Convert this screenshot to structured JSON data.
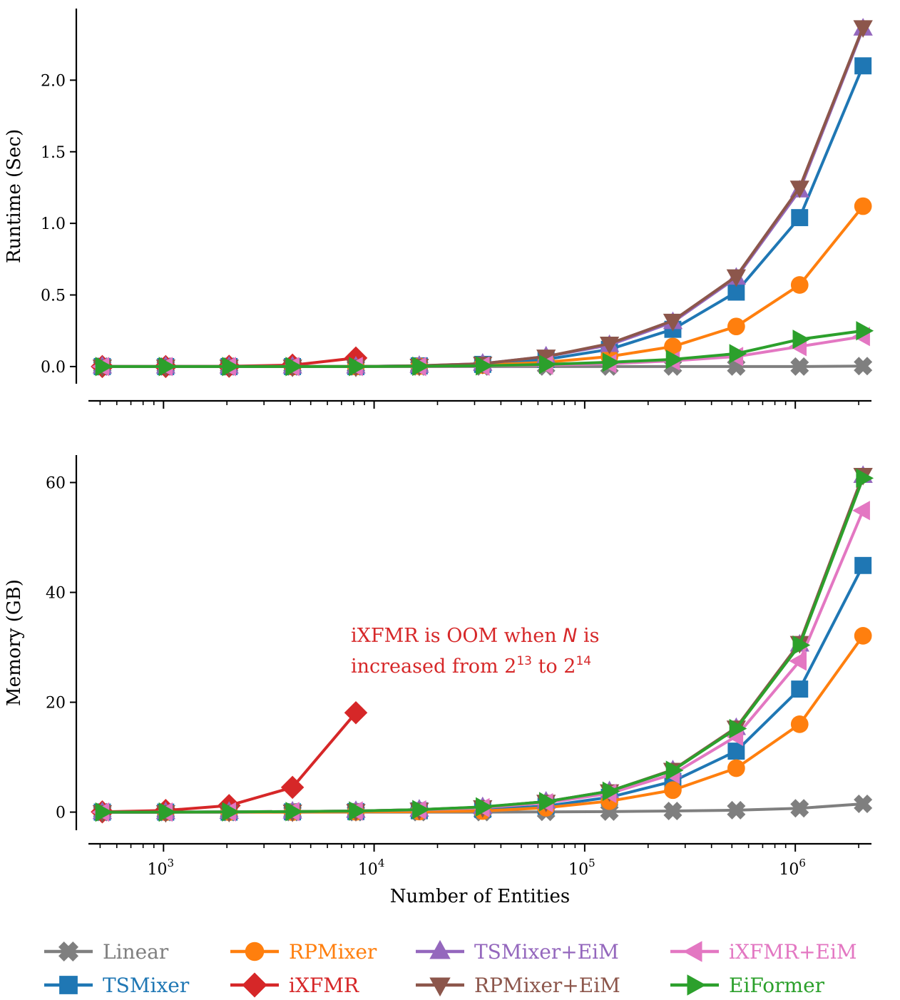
{
  "chart_data": [
    {
      "type": "line",
      "panel": "top",
      "ylabel": "Runtime (Sec)",
      "xlabel": "",
      "xscale": "log",
      "xlim": [
        440,
        2300000
      ],
      "ylim": [
        -0.12,
        2.5
      ],
      "yticks": [
        0.0,
        0.5,
        1.0,
        1.5,
        2.0
      ],
      "ytick_labels": [
        "0.0",
        "0.5",
        "1.0",
        "1.5",
        "2.0"
      ],
      "x": [
        512,
        1024,
        2048,
        4096,
        8192,
        16384,
        32768,
        65536,
        131072,
        262144,
        524288,
        1048576,
        2097152
      ],
      "series": [
        {
          "name": "Linear",
          "color": "#7f7f7f",
          "marker": "x",
          "values": [
            0.0,
            0.0,
            0.0,
            0.0,
            0.0,
            0.0,
            0.0,
            0.0,
            0.0,
            0.0,
            0.0,
            0.0,
            0.003
          ]
        },
        {
          "name": "TSMixer",
          "color": "#1f77b4",
          "marker": "s",
          "values": [
            0.0,
            0.0,
            0.0,
            0.0,
            0.0,
            0.005,
            0.015,
            0.05,
            0.12,
            0.26,
            0.52,
            1.04,
            2.1
          ]
        },
        {
          "name": "RPMixer",
          "color": "#ff7f0e",
          "marker": "o",
          "values": [
            0.0,
            0.0,
            0.0,
            0.0,
            0.0,
            0.003,
            0.01,
            0.03,
            0.07,
            0.14,
            0.28,
            0.57,
            1.12
          ]
        },
        {
          "name": "iXFMR",
          "color": "#d62728",
          "marker": "D",
          "values": [
            0.0,
            0.0,
            0.002,
            0.01,
            0.06,
            null,
            null,
            null,
            null,
            null,
            null,
            null,
            null
          ]
        },
        {
          "name": "TSMixer+EiM",
          "color": "#9467bd",
          "marker": "^",
          "values": [
            0.0,
            0.0,
            0.0,
            0.0,
            0.0,
            0.005,
            0.02,
            0.07,
            0.15,
            0.31,
            0.62,
            1.23,
            2.36
          ]
        },
        {
          "name": "RPMixer+EiM",
          "color": "#8c564b",
          "marker": "v",
          "values": [
            0.0,
            0.0,
            0.0,
            0.0,
            0.0,
            0.006,
            0.02,
            0.07,
            0.16,
            0.32,
            0.63,
            1.25,
            2.37
          ]
        },
        {
          "name": "iXFMR+EiM",
          "color": "#e377c2",
          "marker": "<",
          "values": [
            0.0,
            0.0,
            0.0,
            0.0,
            0.0,
            0.0,
            0.003,
            0.01,
            0.02,
            0.04,
            0.07,
            0.14,
            0.21
          ]
        },
        {
          "name": "EiFormer",
          "color": "#2ca02c",
          "marker": ">",
          "values": [
            0.0,
            0.0,
            0.0,
            0.0,
            0.0,
            0.002,
            0.005,
            0.015,
            0.03,
            0.05,
            0.09,
            0.19,
            0.25
          ]
        }
      ]
    },
    {
      "type": "line",
      "panel": "bottom",
      "ylabel": "Memory (GB)",
      "xlabel": "Number of Entities",
      "xscale": "log",
      "xlim": [
        440,
        2300000
      ],
      "ylim": [
        -3.3,
        65
      ],
      "yticks": [
        0,
        20,
        40,
        60
      ],
      "ytick_labels": [
        "0",
        "20",
        "40",
        "60"
      ],
      "x": [
        512,
        1024,
        2048,
        4096,
        8192,
        16384,
        32768,
        65536,
        131072,
        262144,
        524288,
        1048576,
        2097152
      ],
      "series": [
        {
          "name": "Linear",
          "color": "#7f7f7f",
          "marker": "x",
          "values": [
            0.0,
            0.0,
            0.0,
            0.0,
            0.0,
            0.0,
            0.0,
            0.05,
            0.1,
            0.2,
            0.35,
            0.7,
            1.5
          ]
        },
        {
          "name": "TSMixer",
          "color": "#1f77b4",
          "marker": "s",
          "values": [
            0.0,
            0.0,
            0.0,
            0.05,
            0.1,
            0.25,
            0.5,
            1.1,
            2.7,
            5.6,
            11.1,
            22.4,
            44.9
          ]
        },
        {
          "name": "RPMixer",
          "color": "#ff7f0e",
          "marker": "o",
          "values": [
            0.0,
            0.0,
            0.0,
            0.0,
            0.05,
            0.1,
            0.2,
            0.8,
            2.0,
            4.0,
            8.0,
            16.0,
            32.1
          ]
        },
        {
          "name": "iXFMR",
          "color": "#d62728",
          "marker": "D",
          "values": [
            0.05,
            0.3,
            1.2,
            4.5,
            18.1,
            null,
            null,
            null,
            null,
            null,
            null,
            null,
            null
          ]
        },
        {
          "name": "TSMixer+EiM",
          "color": "#9467bd",
          "marker": "^",
          "values": [
            0.0,
            0.0,
            0.05,
            0.1,
            0.2,
            0.45,
            0.9,
            1.9,
            3.8,
            7.6,
            15.3,
            30.5,
            61.2
          ]
        },
        {
          "name": "RPMixer+EiM",
          "color": "#8c564b",
          "marker": "v",
          "values": [
            0.0,
            0.0,
            0.05,
            0.1,
            0.2,
            0.45,
            0.9,
            1.9,
            3.8,
            7.7,
            15.4,
            30.8,
            61.4
          ]
        },
        {
          "name": "iXFMR+EiM",
          "color": "#e377c2",
          "marker": "<",
          "values": [
            0.0,
            0.0,
            0.05,
            0.1,
            0.2,
            0.4,
            0.8,
            1.7,
            3.4,
            6.9,
            13.8,
            27.5,
            54.9
          ]
        },
        {
          "name": "EiFormer",
          "color": "#2ca02c",
          "marker": ">",
          "values": [
            0.0,
            0.0,
            0.05,
            0.1,
            0.2,
            0.45,
            0.95,
            1.9,
            3.8,
            7.6,
            15.2,
            30.4,
            60.8
          ]
        }
      ],
      "annotation": {
        "line1": "iXFMR is OOM when ",
        "line1_var": "N",
        "line1_end": " is",
        "line2_a": "increased from 2",
        "line2_exp1": "13",
        "line2_b": " to 2",
        "line2_exp2": "14",
        "color": "#d62728"
      }
    }
  ],
  "xaxis_ticks": {
    "major": [
      1000,
      10000,
      100000,
      1000000
    ],
    "bases": [
      "10",
      "10",
      "10",
      "10"
    ],
    "exponents": [
      "3",
      "4",
      "5",
      "6"
    ]
  },
  "legend": {
    "placement": "bottom",
    "order": [
      "Linear",
      "RPMixer",
      "TSMixer+EiM",
      "iXFMR+EiM",
      "TSMixer",
      "iXFMR",
      "RPMixer+EiM",
      "EiFormer"
    ]
  }
}
